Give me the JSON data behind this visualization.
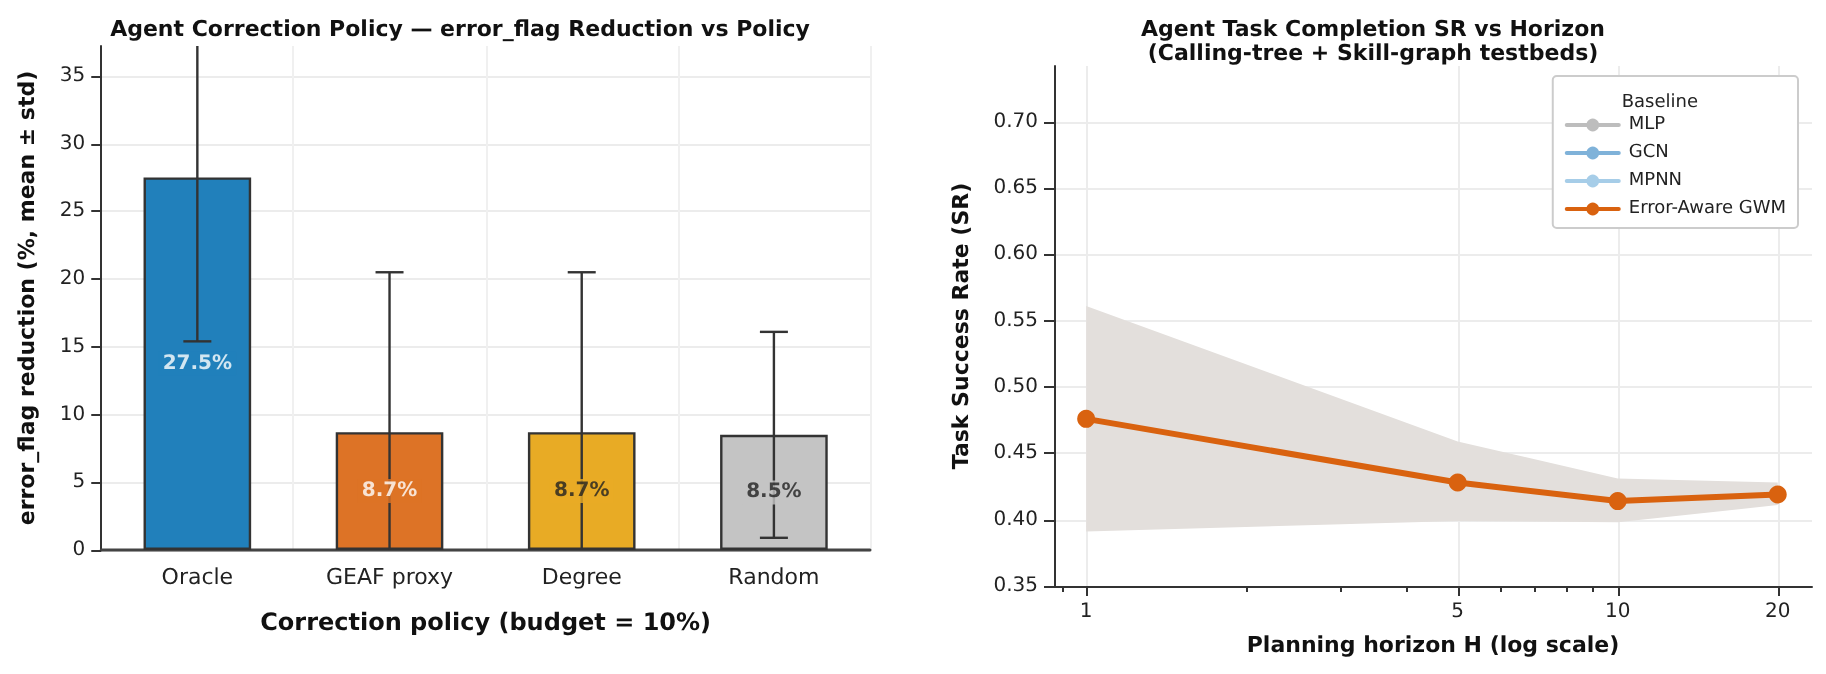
{
  "chart_data": [
    {
      "type": "bar",
      "title": "Agent Correction Policy — error_flag Reduction vs Policy",
      "xlabel": "Correction policy (budget = 10%)",
      "ylabel": "error_flag reduction (%, mean ± std)",
      "categories": [
        "Oracle",
        "GEAF proxy",
        "Degree",
        "Random"
      ],
      "values": [
        27.5,
        8.7,
        8.7,
        8.5
      ],
      "colors": [
        "#2180bb",
        "#dd7326",
        "#e8ab25",
        "#c4c4c4"
      ],
      "errors": [
        12.1,
        11.8,
        11.8,
        7.6
      ],
      "value_labels": [
        "27.5%",
        "8.7%",
        "8.7%",
        "8.5%"
      ],
      "ylim": [
        0,
        37.2
      ],
      "yticks": [
        0,
        5,
        10,
        15,
        20,
        25,
        30,
        35
      ],
      "grid": true,
      "legend": false
    },
    {
      "type": "line",
      "title": "Agent Task Completion SR vs Horizon",
      "subtitle": "(Calling-tree + Skill-graph testbeds)",
      "xlabel": "Planning horizon H (log scale)",
      "ylabel": "Task Success Rate (SR)",
      "legend_title": "Baseline",
      "x": [
        1,
        5,
        10,
        20
      ],
      "series": [
        {
          "name": "MLP",
          "color": "#bdbdbd",
          "values": [
            null,
            null,
            null,
            null
          ]
        },
        {
          "name": "GCN",
          "color": "#7fb2d9",
          "values": [
            null,
            null,
            null,
            null
          ]
        },
        {
          "name": "MPNN",
          "color": "#a6cde8",
          "values": [
            null,
            null,
            null,
            null
          ]
        },
        {
          "name": "Error-Aware GWM",
          "color": "#d9620f",
          "values": [
            0.476,
            0.428,
            0.414,
            0.419
          ],
          "lower": [
            0.391,
            0.399,
            0.398,
            0.411
          ],
          "upper": [
            0.561,
            0.459,
            0.431,
            0.428
          ]
        }
      ],
      "log": "x",
      "xlim": [
        0.87,
        23.2
      ],
      "xticks": [
        1,
        5,
        10,
        20
      ],
      "ylim": [
        0.35,
        0.742
      ],
      "yticks": [
        0.35,
        {
          "value": 0.4,
          "label": "0.40"
        },
        0.45,
        {
          "value": 0.5,
          "label": "0.50"
        },
        0.55,
        {
          "value": 0.6,
          "label": "0.60"
        },
        0.65,
        {
          "value": 0.7,
          "label": "0.70"
        }
      ],
      "grid": true,
      "legend": "top right",
      "marker": "circle",
      "line_style": "solid"
    }
  ]
}
